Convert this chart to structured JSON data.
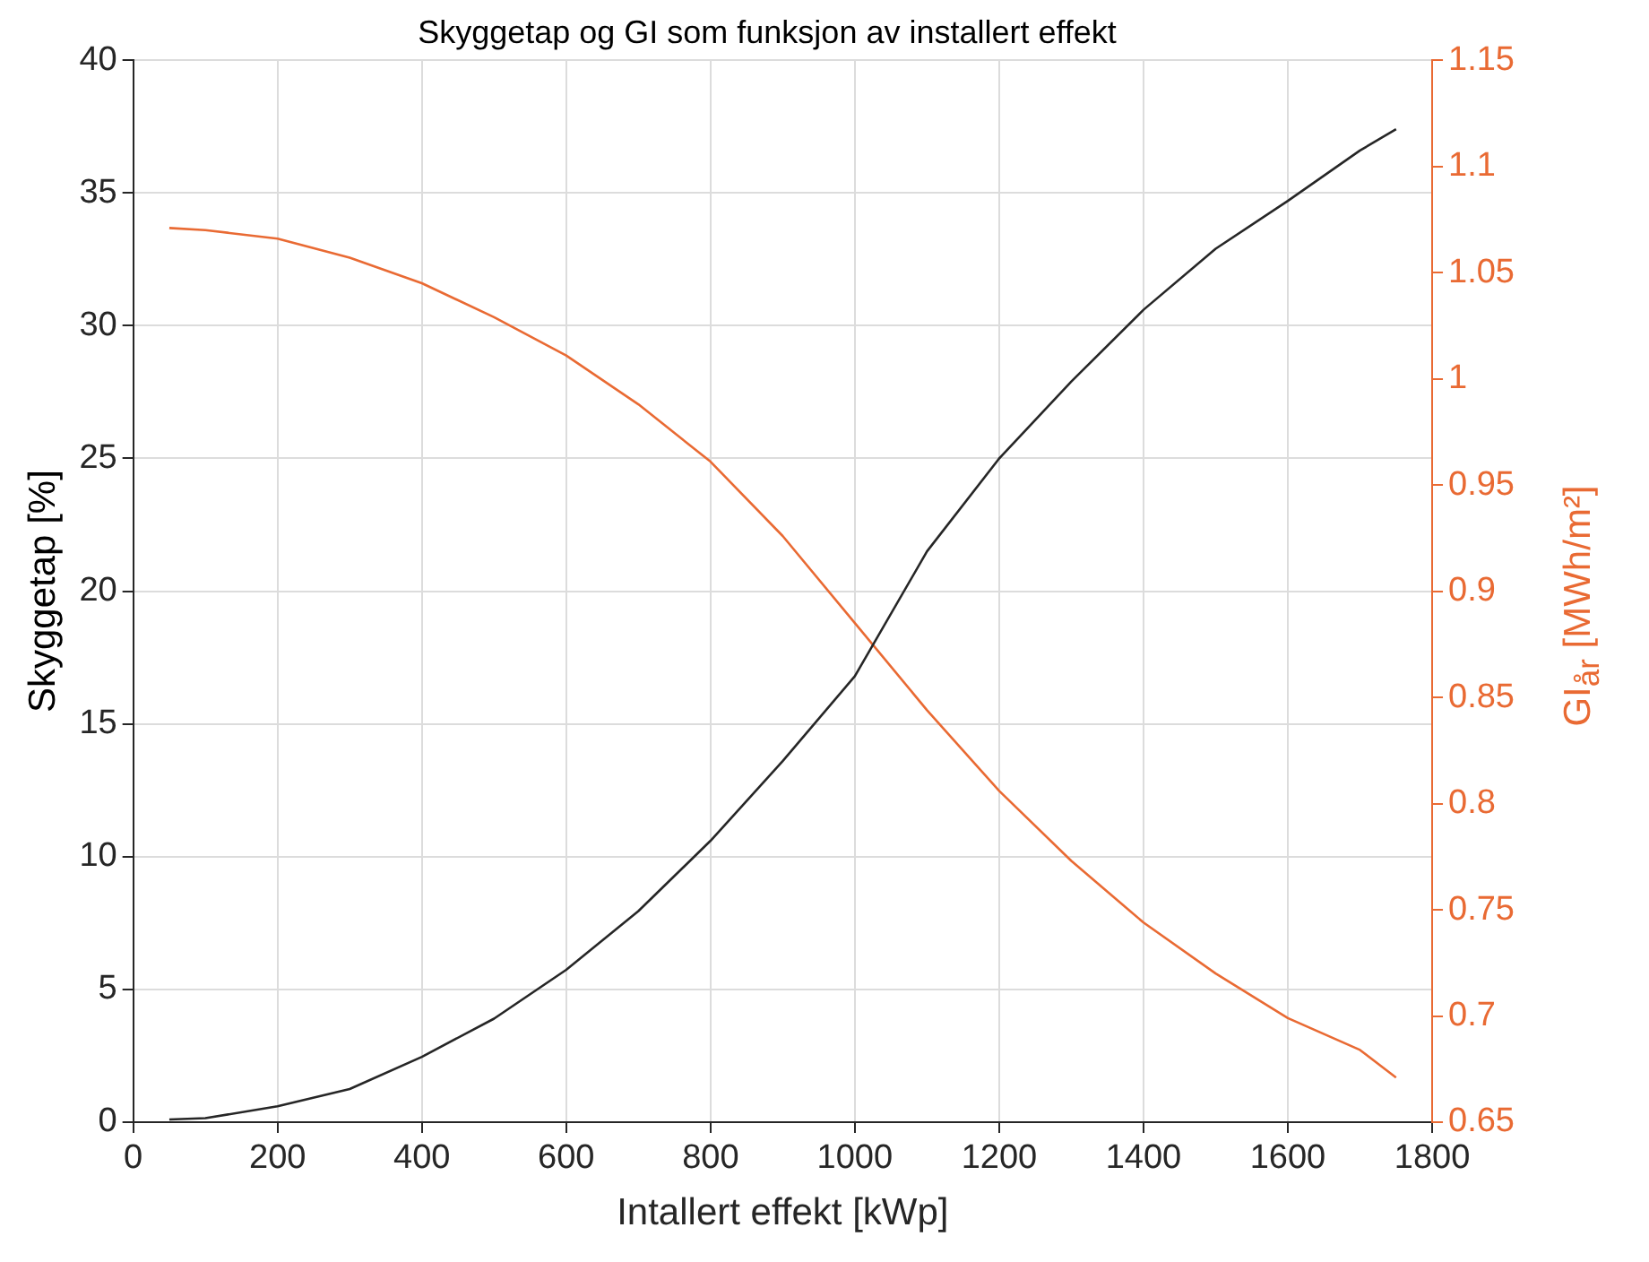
{
  "chart_data": {
    "type": "line",
    "title": "Skyggetap og GI som funksjon av installert effekt",
    "xlabel": "Intallert effekt [kWp]",
    "ylabel": "Skyggetap [%]",
    "y2label": "GI$_{år}$ [MWh/m²]",
    "x": [
      50,
      100,
      200,
      300,
      400,
      500,
      600,
      700,
      800,
      900,
      1000,
      1100,
      1200,
      1300,
      1400,
      1500,
      1600,
      1700,
      1750
    ],
    "series": [
      {
        "color": "#262626",
        "values": [
          0.1,
          0.15,
          0.6,
          1.25,
          2.46,
          3.9,
          5.74,
          7.95,
          10.6,
          13.6,
          16.8,
          21.5,
          25.0,
          27.9,
          30.6,
          32.9,
          34.7,
          36.6,
          37.4
        ]
      },
      {
        "color": "#e96a33",
        "axis": "y2",
        "values": [
          1.071,
          1.07,
          1.066,
          1.057,
          1.045,
          1.029,
          1.011,
          0.988,
          0.961,
          0.926,
          0.885,
          0.844,
          0.806,
          0.773,
          0.744,
          0.72,
          0.699,
          0.684,
          0.671
        ]
      }
    ],
    "xlim": [
      0,
      1800
    ],
    "xticks": [
      0,
      200,
      400,
      600,
      800,
      1000,
      1200,
      1400,
      1600,
      1800
    ],
    "ylim": [
      0,
      40
    ],
    "yticks": [
      0,
      5,
      10,
      15,
      20,
      25,
      30,
      35,
      40
    ],
    "y2lim": [
      0.65,
      1.15
    ],
    "y2ticks": [
      0.65,
      0.7,
      0.75,
      0.8,
      0.85,
      0.9,
      0.95,
      1,
      1.05,
      1.1,
      1.15
    ],
    "grid": true,
    "legend": false,
    "marker": "none",
    "line_style": "solid"
  }
}
